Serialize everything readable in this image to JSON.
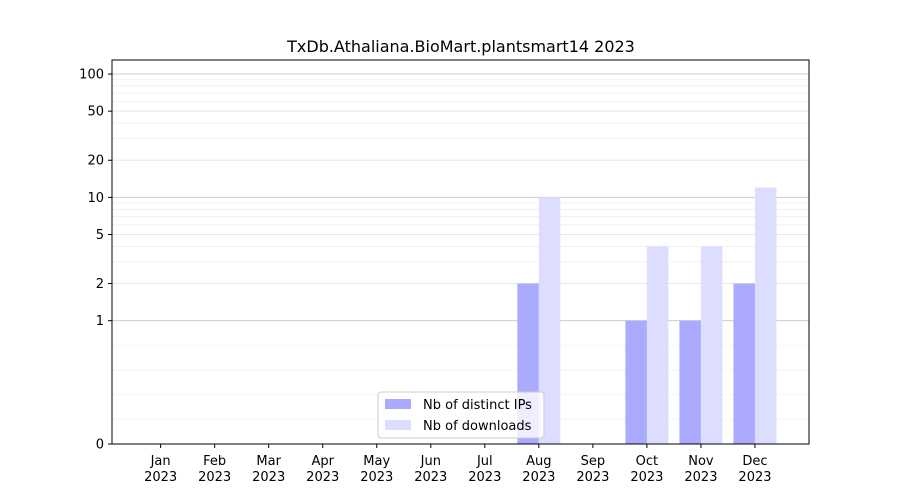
{
  "chart_data": {
    "type": "bar",
    "title": "TxDb.Athaliana.BioMart.plantsmart14 2023",
    "xlabel": "",
    "ylabel": "",
    "y_scale": "symlog",
    "grid": "y",
    "legend_position": "bottom-center",
    "categories": [
      "Jan\n2023",
      "Feb\n2023",
      "Mar\n2023",
      "Apr\n2023",
      "May\n2023",
      "Jun\n2023",
      "Jul\n2023",
      "Aug\n2023",
      "Sep\n2023",
      "Oct\n2023",
      "Nov\n2023",
      "Dec\n2023"
    ],
    "y_ticks": [
      "0",
      "1",
      "2",
      "5",
      "10",
      "20",
      "50",
      "100"
    ],
    "series": [
      {
        "name": "Nb of distinct IPs",
        "color": "#aaaaff",
        "values": [
          0,
          0,
          0,
          0,
          0,
          0,
          0,
          2,
          0,
          1,
          1,
          2
        ]
      },
      {
        "name": "Nb of downloads",
        "color": "#ddddff",
        "values": [
          0,
          0,
          0,
          0,
          0,
          0,
          0,
          10,
          0,
          4,
          4,
          12
        ]
      }
    ]
  }
}
